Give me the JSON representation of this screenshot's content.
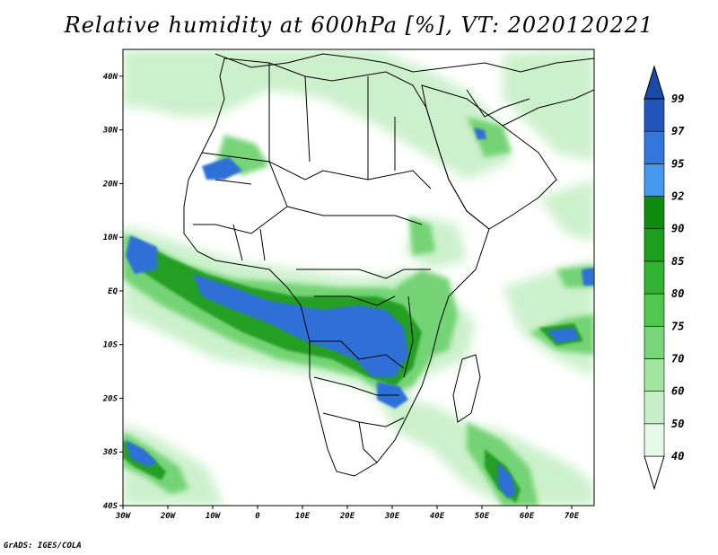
{
  "title": "Relative humidity at 600hPa [%], VT: 2020120221",
  "credit": "GrADS: IGES/COLA",
  "map": {
    "lat_ticks": [
      "40N",
      "30N",
      "20N",
      "10N",
      "EQ",
      "10S",
      "20S",
      "30S",
      "40S"
    ],
    "lon_ticks": [
      "30W",
      "20W",
      "10W",
      "0",
      "10E",
      "20E",
      "30E",
      "40E",
      "50E",
      "60E",
      "70E"
    ],
    "lon_range": [
      -30,
      75
    ],
    "lat_range": [
      -40,
      45
    ]
  },
  "colorbar": {
    "levels": [
      "40",
      "50",
      "60",
      "70",
      "75",
      "80",
      "85",
      "90",
      "92",
      "95",
      "97",
      "99"
    ],
    "colors": [
      "#ffffff",
      "#e6f8e6",
      "#c8f0c8",
      "#a0e6a0",
      "#78d678",
      "#50c850",
      "#32b432",
      "#1e9e1e",
      "#0f8c0f",
      "#4499ee",
      "#3377dd",
      "#2255bb",
      "#1a4aa8"
    ]
  }
}
